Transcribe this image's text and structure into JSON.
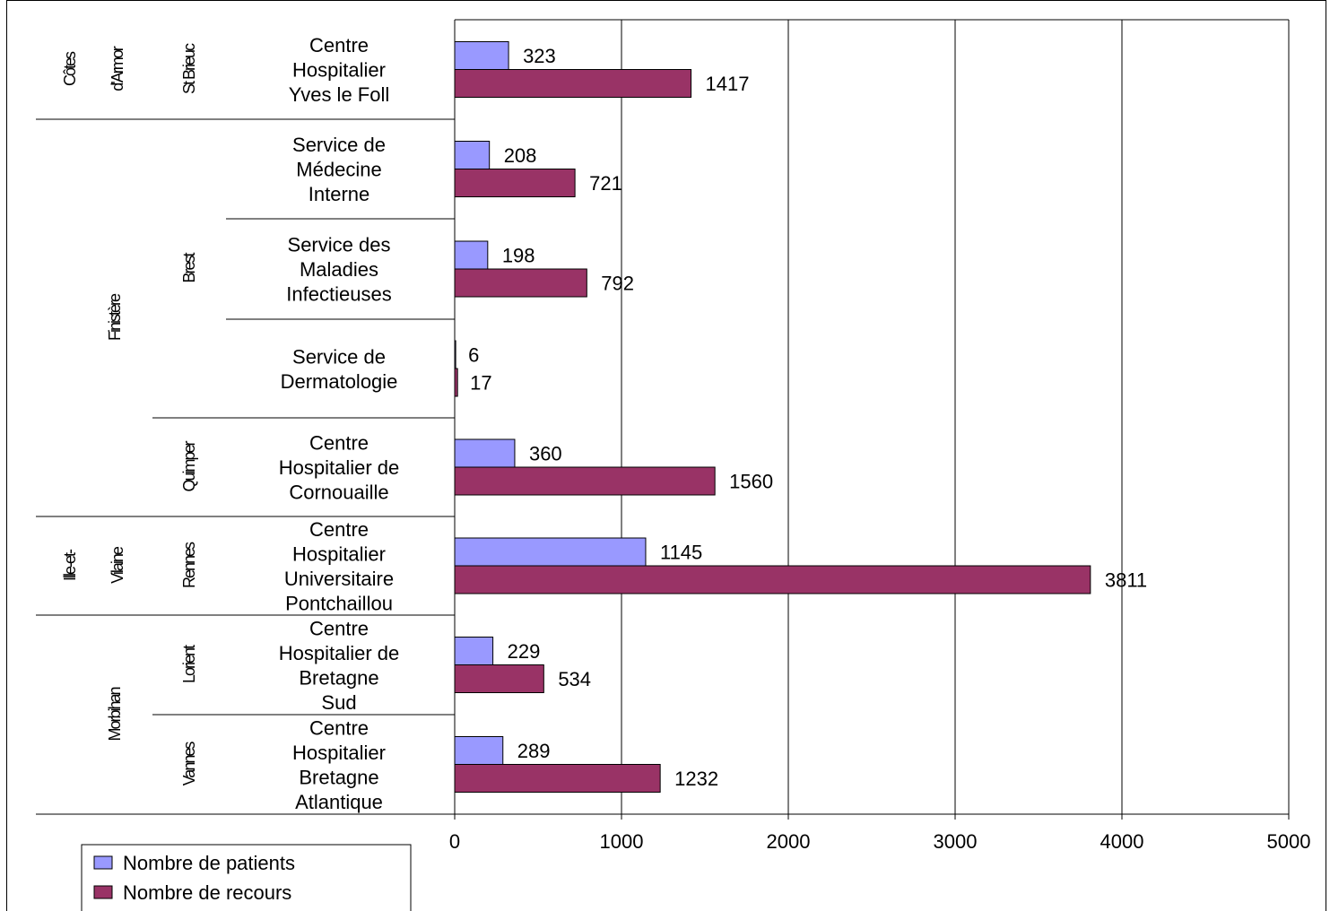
{
  "chart_data": {
    "type": "bar",
    "orientation": "horizontal",
    "title": "",
    "xlabel": "",
    "ylabel": "",
    "xlim": [
      0,
      5000
    ],
    "x_ticks": [
      "0",
      "1000",
      "2000",
      "3000",
      "4000",
      "5000"
    ],
    "grid": "vertical",
    "legend_position": "bottom-left",
    "categories": [
      {
        "department": "Côtes d'Armor",
        "city": "St Brieuc",
        "label": [
          "Centre",
          "Hospitalier",
          "Yves le Foll"
        ]
      },
      {
        "department": "Finistère",
        "city": "Brest",
        "label": [
          "Service de",
          "Médecine",
          "Interne"
        ]
      },
      {
        "department": "Finistère",
        "city": "Brest",
        "label": [
          "Service des",
          "Maladies",
          "Infectieuses"
        ]
      },
      {
        "department": "Finistère",
        "city": "Brest",
        "label": [
          "Service de",
          "Dermatologie"
        ]
      },
      {
        "department": "Finistère",
        "city": "Quimper",
        "label": [
          "Centre",
          "Hospitalier de",
          "Cornouaille"
        ]
      },
      {
        "department": "Ille-et-Vilaine",
        "city": "Rennes",
        "label": [
          "Centre",
          "Hospitalier",
          "Universitaire",
          "Pontchaillou"
        ]
      },
      {
        "department": "Morbihan",
        "city": "Lorient",
        "label": [
          "Centre",
          "Hospitalier de",
          "Bretagne",
          "Sud"
        ]
      },
      {
        "department": "Morbihan",
        "city": "Vannes",
        "label": [
          "Centre",
          "Hospitalier",
          "Bretagne",
          "Atlantique"
        ]
      }
    ],
    "departments": [
      {
        "name": "Côtes d'Armor",
        "lines": [
          "Côtes",
          "d'Armor"
        ],
        "rows": [
          0,
          0
        ]
      },
      {
        "name": "Finistère",
        "lines": [
          "Finistère"
        ],
        "rows": [
          1,
          4
        ]
      },
      {
        "name": "Ille-et-Vilaine",
        "lines": [
          "Ille-et-",
          "Vilaine"
        ],
        "rows": [
          5,
          5
        ]
      },
      {
        "name": "Morbihan",
        "lines": [
          "Morbihan"
        ],
        "rows": [
          6,
          7
        ]
      }
    ],
    "cities": [
      {
        "name": "St Brieuc",
        "rows": [
          0,
          0
        ]
      },
      {
        "name": "Brest",
        "rows": [
          1,
          3
        ]
      },
      {
        "name": "Quimper",
        "rows": [
          4,
          4
        ]
      },
      {
        "name": "Rennes",
        "rows": [
          5,
          5
        ]
      },
      {
        "name": "Lorient",
        "rows": [
          6,
          6
        ]
      },
      {
        "name": "Vannes",
        "rows": [
          7,
          7
        ]
      }
    ],
    "series": [
      {
        "name": "Nombre de patients",
        "color": "#9999FF",
        "values": [
          323,
          208,
          198,
          6,
          360,
          1145,
          229,
          289
        ]
      },
      {
        "name": "Nombre de recours",
        "color": "#993366",
        "values": [
          1417,
          721,
          792,
          17,
          1560,
          3811,
          534,
          1232
        ]
      }
    ]
  }
}
